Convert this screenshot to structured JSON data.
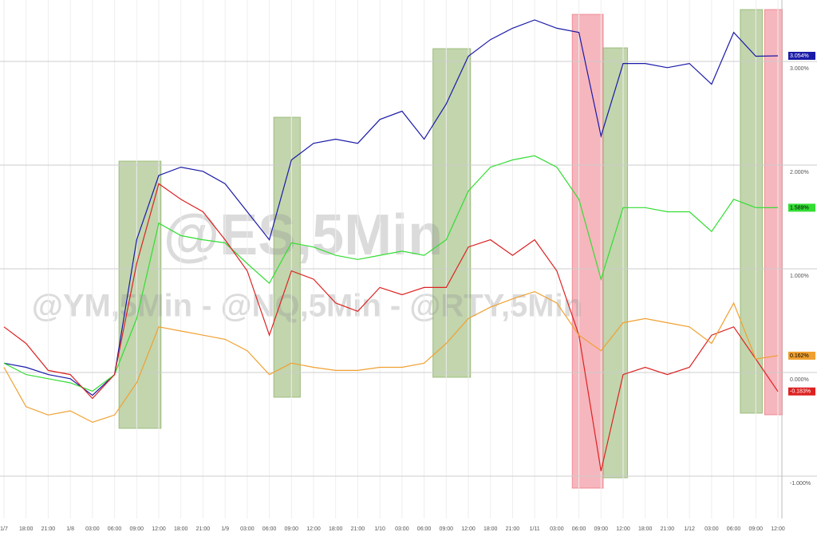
{
  "chart_data": {
    "type": "line",
    "watermark": [
      "@ES,5Min",
      "@YM,5Min - @NQ,5Min - @RTY,5Min"
    ],
    "categories": [
      "1/7",
      "18:00",
      "21:00",
      "1/8",
      "03:00",
      "06:00",
      "09:00",
      "12:00",
      "18:00",
      "21:00",
      "1/9",
      "03:00",
      "06:00",
      "09:00",
      "12:00",
      "18:00",
      "21:00",
      "1/10",
      "03:00",
      "06:00",
      "09:00",
      "12:00",
      "18:00",
      "21:00",
      "1/11",
      "03:00",
      "06:00",
      "09:00",
      "12:00",
      "18:00",
      "21:00",
      "1/12",
      "03:00",
      "06:00",
      "09:00",
      "12:00"
    ],
    "series": [
      {
        "color": "#1a1aa8",
        "values": [
          0.09,
          0.05,
          -0.02,
          -0.06,
          -0.22,
          -0.02,
          1.28,
          1.9,
          1.98,
          1.94,
          1.82,
          1.55,
          1.28,
          2.05,
          2.21,
          2.25,
          2.21,
          2.44,
          2.52,
          2.25,
          2.59,
          3.05,
          3.21,
          3.32,
          3.4,
          3.32,
          3.28,
          2.28,
          2.98,
          2.98,
          2.94,
          2.98,
          2.78,
          3.28,
          3.05,
          3.054
        ],
        "value_labels": [
          null,
          null,
          null,
          null,
          null,
          null,
          null,
          null,
          null,
          null,
          null,
          null,
          null,
          null,
          null,
          null,
          null,
          null,
          null,
          null,
          null,
          null,
          null,
          null,
          null,
          null,
          null,
          null,
          null,
          null,
          null,
          null,
          null,
          null,
          null,
          "3.054%"
        ]
      },
      {
        "color": "#33dd33",
        "values": [
          0.09,
          -0.02,
          -0.06,
          -0.1,
          -0.18,
          -0.02,
          0.52,
          1.44,
          1.32,
          1.28,
          1.25,
          1.05,
          0.86,
          1.25,
          1.21,
          1.13,
          1.09,
          1.13,
          1.17,
          1.13,
          1.28,
          1.75,
          1.98,
          2.05,
          2.09,
          1.98,
          1.67,
          0.9,
          1.59,
          1.59,
          1.55,
          1.55,
          1.36,
          1.67,
          1.59,
          1.589
        ],
        "value_labels": [
          null,
          null,
          null,
          null,
          null,
          null,
          null,
          null,
          null,
          null,
          null,
          null,
          null,
          null,
          null,
          null,
          null,
          null,
          null,
          null,
          null,
          null,
          null,
          null,
          null,
          null,
          null,
          null,
          null,
          null,
          null,
          null,
          null,
          null,
          null,
          "1.589%"
        ]
      },
      {
        "color": "#dd2222",
        "values": [
          0.44,
          0.28,
          0.02,
          -0.02,
          -0.25,
          -0.02,
          1.05,
          1.82,
          1.67,
          1.55,
          1.28,
          0.98,
          0.36,
          0.98,
          0.9,
          0.67,
          0.59,
          0.82,
          0.75,
          0.82,
          0.82,
          1.21,
          1.28,
          1.13,
          1.28,
          0.98,
          0.36,
          -0.95,
          -0.02,
          0.05,
          -0.02,
          0.05,
          0.36,
          0.44,
          0.13,
          -0.183
        ],
        "value_labels": [
          null,
          null,
          null,
          null,
          null,
          null,
          null,
          null,
          null,
          null,
          null,
          null,
          null,
          null,
          null,
          null,
          null,
          null,
          null,
          null,
          null,
          null,
          null,
          null,
          null,
          null,
          null,
          null,
          null,
          null,
          null,
          null,
          null,
          null,
          null,
          "-0.183%"
        ]
      },
      {
        "color": "#f0a030",
        "values": [
          0.05,
          -0.33,
          -0.41,
          -0.37,
          -0.48,
          -0.41,
          -0.1,
          0.44,
          0.4,
          0.36,
          0.32,
          0.21,
          -0.02,
          0.09,
          0.05,
          0.02,
          0.02,
          0.05,
          0.05,
          0.09,
          0.28,
          0.52,
          0.63,
          0.71,
          0.78,
          0.67,
          0.36,
          0.21,
          0.48,
          0.52,
          0.48,
          0.44,
          0.28,
          0.67,
          0.13,
          0.162
        ],
        "value_labels": [
          null,
          null,
          null,
          null,
          null,
          null,
          null,
          null,
          null,
          null,
          null,
          null,
          null,
          null,
          null,
          null,
          null,
          null,
          null,
          null,
          null,
          null,
          null,
          null,
          null,
          null,
          null,
          null,
          null,
          null,
          null,
          null,
          null,
          null,
          null,
          "0.162%"
        ]
      }
    ],
    "ylim": [
      -1.3,
      3.55
    ],
    "yticks": [
      {
        "value": -1,
        "label": "-1.000%"
      },
      {
        "value": 0,
        "label": "0.000%"
      },
      {
        "value": 1,
        "label": "1.000%"
      },
      {
        "value": 2,
        "label": "2.000%"
      },
      {
        "value": 3,
        "label": "3.000%"
      }
    ],
    "grid": true
  }
}
